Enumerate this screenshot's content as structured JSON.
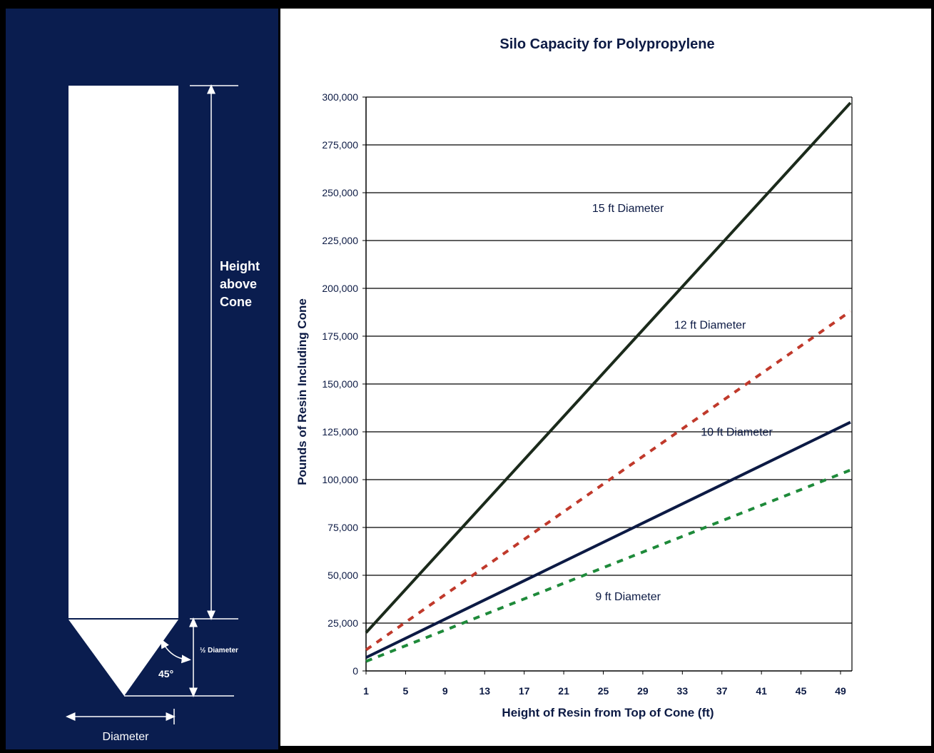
{
  "diagram": {
    "height_label_lines": [
      "Height",
      "above",
      "Cone"
    ],
    "half_diameter_label": "½ Diameter",
    "angle_label": "45°",
    "diameter_label": "Diameter"
  },
  "chart_data": {
    "type": "line",
    "title": "Silo Capacity for Polypropylene",
    "xlabel": "Height of Resin from Top of Cone (ft)",
    "ylabel": "Pounds of Resin Including Cone",
    "ylim": [
      0,
      300000
    ],
    "xlim": [
      1,
      49
    ],
    "x_tick_labels": [
      "1",
      "5",
      "9",
      "13",
      "17",
      "21",
      "25",
      "29",
      "33",
      "37",
      "41",
      "45",
      "49"
    ],
    "y_tick_labels": [
      "0",
      "25,000",
      "50,000",
      "75,000",
      "100,000",
      "125,000",
      "150,000",
      "175,000",
      "200,000",
      "225,000",
      "250,000",
      "275,000",
      "300,000"
    ],
    "grid": true,
    "series": [
      {
        "name": "15 ft Diameter",
        "color": "#1b2a1b",
        "style": "solid",
        "x": [
          1,
          50
        ],
        "y": [
          20000,
          297000
        ]
      },
      {
        "name": "12 ft Diameter",
        "color": "#c0392b",
        "style": "dashed",
        "x": [
          1,
          50
        ],
        "y": [
          11000,
          188000
        ]
      },
      {
        "name": "10 ft Diameter",
        "color": "#0c1a44",
        "style": "solid",
        "x": [
          1,
          50
        ],
        "y": [
          7000,
          130000
        ]
      },
      {
        "name": "9 ft Diameter",
        "color": "#1e8a3a",
        "style": "dashed",
        "x": [
          1,
          50
        ],
        "y": [
          5000,
          105000
        ]
      }
    ],
    "annotations": [
      {
        "text": "15 ft Diameter",
        "x": 27.5,
        "y": 240000
      },
      {
        "text": "12 ft Diameter",
        "x": 35.8,
        "y": 179000
      },
      {
        "text": "10 ft Diameter",
        "x": 38.5,
        "y": 123000
      },
      {
        "text": "9 ft Diameter",
        "x": 27.5,
        "y": 37000
      }
    ]
  }
}
